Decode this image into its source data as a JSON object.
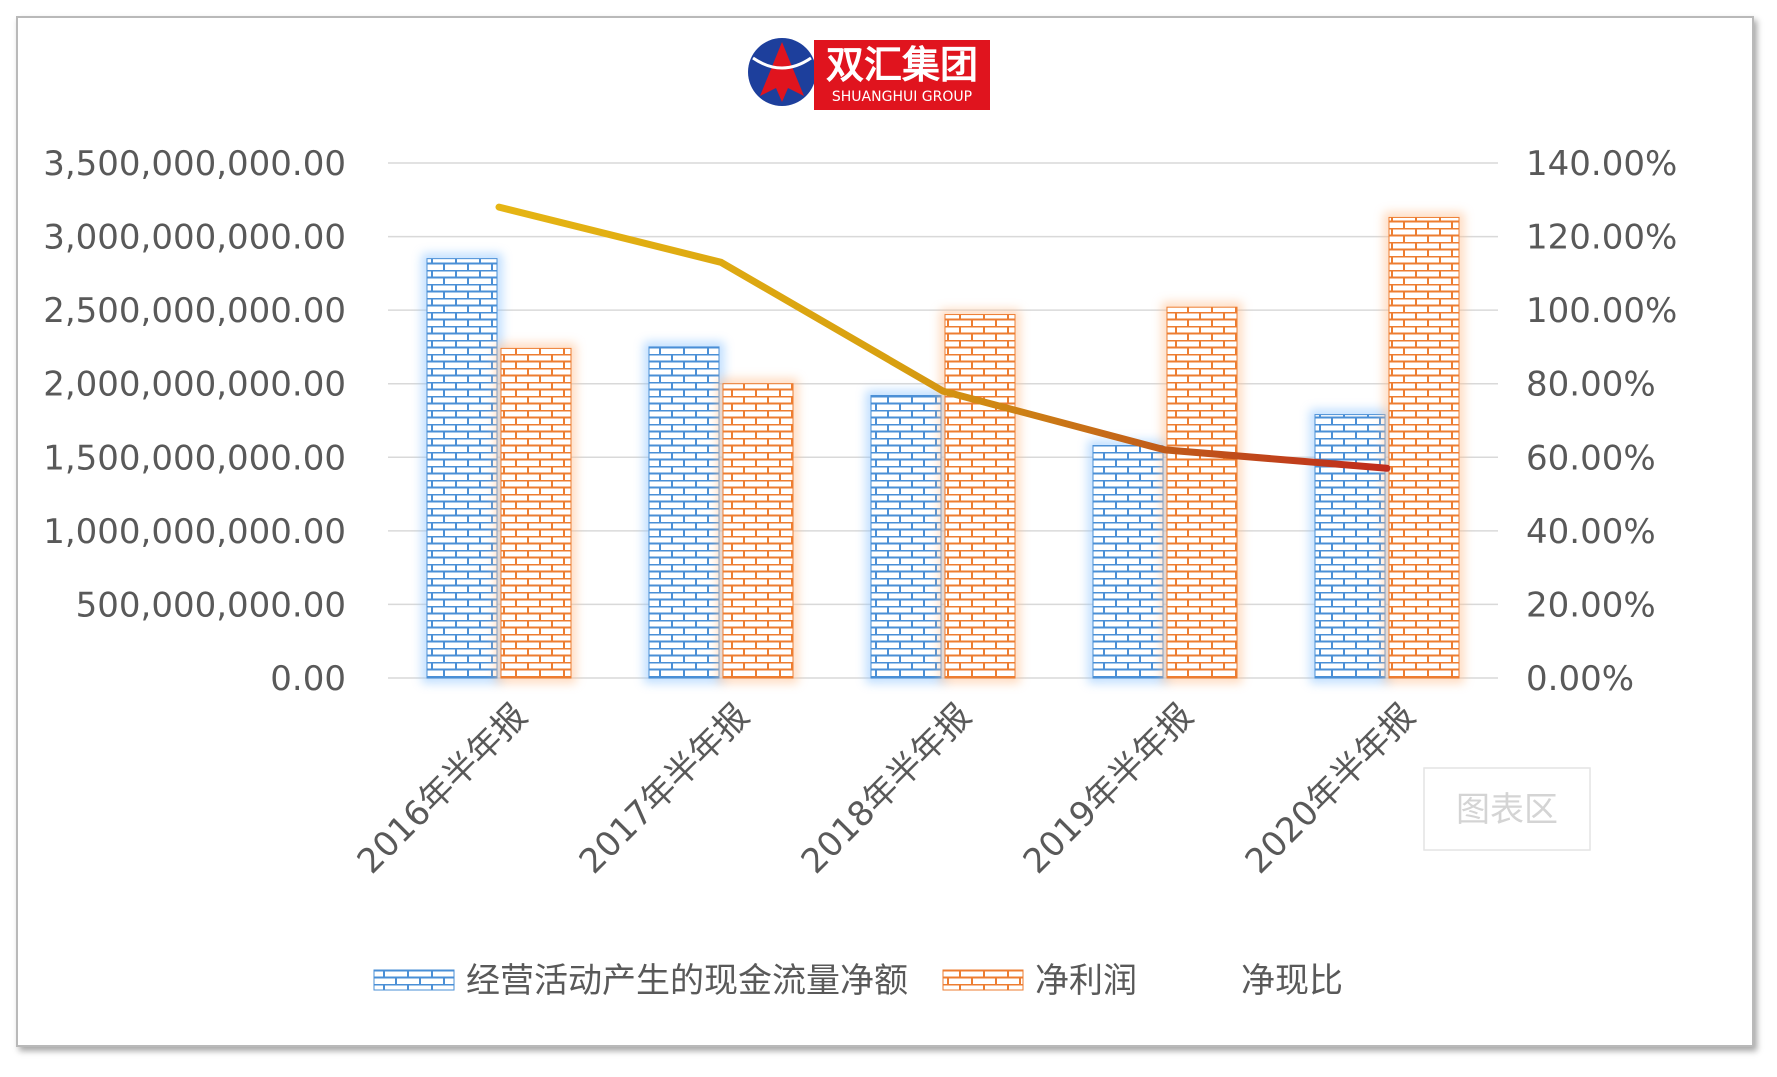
{
  "logo": {
    "brand_name": "双汇集团",
    "brand_sub": "SHUANGHUI GROUP",
    "colors": {
      "red": "#e0141e",
      "blue": "#1d3f9c"
    }
  },
  "watermark": "图表区",
  "chart_data": {
    "type": "bar",
    "categories": [
      "2016年半年报",
      "2017年半年报",
      "2018年半年报",
      "2019年半年报",
      "2020年半年报"
    ],
    "series": [
      {
        "name": "经营活动产生的现金流量净额",
        "type": "bar",
        "axis": "left",
        "color": "#4a8fd6",
        "values": [
          2850000000,
          2250000000,
          1920000000,
          1580000000,
          1790000000
        ]
      },
      {
        "name": "净利润",
        "type": "bar",
        "axis": "left",
        "color": "#ed7d31",
        "values": [
          2240000000,
          2000000000,
          2470000000,
          2520000000,
          3130000000
        ]
      },
      {
        "name": "净现比",
        "type": "line",
        "axis": "right",
        "color_start": "#e6b614",
        "color_end": "#c0281c",
        "values": [
          1.28,
          1.13,
          0.78,
          0.62,
          0.57
        ]
      }
    ],
    "left_axis": {
      "range": [
        0,
        3500000000
      ],
      "ticks": [
        "0.00",
        "500,000,000.00",
        "1,000,000,000.00",
        "1,500,000,000.00",
        "2,000,000,000.00",
        "2,500,000,000.00",
        "3,000,000,000.00",
        "3,500,000,000.00"
      ]
    },
    "right_axis": {
      "range": [
        0,
        1.4
      ],
      "ticks": [
        "0.00%",
        "20.00%",
        "40.00%",
        "60.00%",
        "80.00%",
        "100.00%",
        "120.00%",
        "140.00%"
      ]
    },
    "grid": true,
    "legend_position": "bottom",
    "legend": [
      "经营活动产生的现金流量净额",
      "净利润",
      "净现比"
    ]
  }
}
